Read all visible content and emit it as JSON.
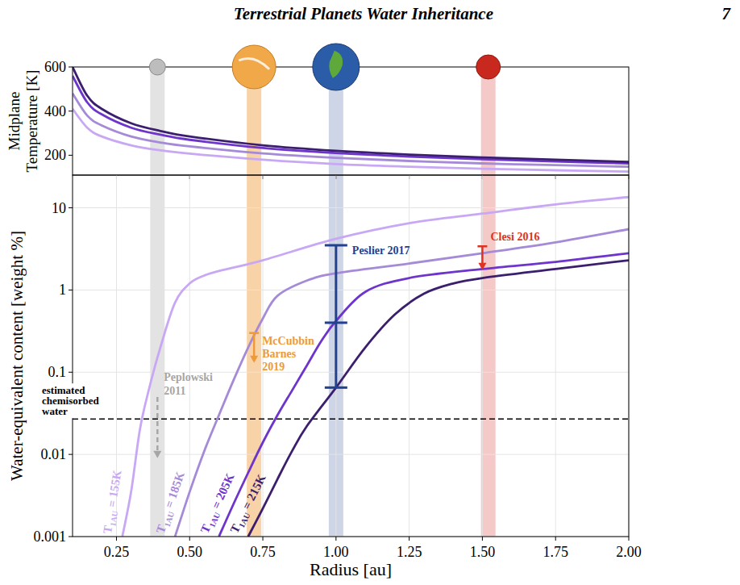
{
  "header": {
    "title": "Terrestrial Planets Water Inheritance",
    "page": "7"
  },
  "chart_data": [
    {
      "type": "line",
      "y_label": "Midplane Temperature [K]",
      "xlim": [
        0.1,
        2.0
      ],
      "ylim": [
        110,
        600
      ],
      "xticks": [
        0.25,
        0.5,
        0.75,
        1,
        1.25,
        1.5,
        1.75,
        2
      ],
      "yticks": [
        200,
        400,
        600
      ],
      "tick_labels": "y",
      "grid": false,
      "series": [
        {
          "color": "#c8a8f4",
          "x": [
            0.1,
            0.15,
            0.2,
            0.3,
            0.4,
            0.5,
            0.75,
            1.0,
            1.25,
            1.5,
            1.75,
            2.0
          ],
          "values": [
            410,
            325,
            285,
            245,
            222,
            207,
            180,
            160,
            148,
            139,
            132,
            126
          ]
        },
        {
          "color": "#a58ad8",
          "x": [
            0.1,
            0.15,
            0.2,
            0.3,
            0.4,
            0.5,
            0.75,
            1.0,
            1.25,
            1.5,
            1.75,
            2.0
          ],
          "values": [
            480,
            380,
            335,
            285,
            258,
            240,
            208,
            188,
            174,
            163,
            155,
            148
          ]
        },
        {
          "color": "#6d35cc",
          "x": [
            0.1,
            0.15,
            0.2,
            0.3,
            0.4,
            0.5,
            0.75,
            1.0,
            1.25,
            1.5,
            1.75,
            2.0
          ],
          "values": [
            560,
            440,
            385,
            325,
            293,
            270,
            233,
            210,
            194,
            182,
            172,
            163
          ]
        },
        {
          "color": "#3b1f6e",
          "x": [
            0.1,
            0.15,
            0.2,
            0.3,
            0.4,
            0.5,
            0.75,
            1.0,
            1.25,
            1.5,
            1.75,
            2.0
          ],
          "values": [
            600,
            470,
            410,
            345,
            310,
            285,
            245,
            220,
            203,
            190,
            180,
            170
          ]
        }
      ]
    },
    {
      "type": "line",
      "log": "y",
      "x_label": "Radius [au]",
      "y_label": "Water-equivalent content [weight %]",
      "xlim": [
        0.1,
        2.0
      ],
      "ylim": [
        0.001,
        25
      ],
      "xticks": [
        0.25,
        {
          "value": 0.5,
          "label": "0.50"
        },
        0.75,
        {
          "value": 1,
          "label": "1.00"
        },
        1.25,
        {
          "value": 1.5,
          "label": "1.50"
        },
        1.75,
        {
          "value": 2,
          "label": "2.00"
        }
      ],
      "yticks": [
        0.001,
        0.01,
        0.1,
        1,
        10
      ],
      "grid": true,
      "series": [
        {
          "name": "T1AU = 155K",
          "color": "#c8a8f4",
          "x": [
            0.27,
            0.3,
            0.33,
            0.36,
            0.4,
            0.45,
            0.5,
            0.55,
            0.6,
            0.75,
            1.0,
            1.25,
            1.5,
            1.75,
            2.0
          ],
          "values": [
            0.001,
            0.0035,
            0.02,
            0.06,
            0.2,
            0.7,
            1.2,
            1.5,
            1.7,
            2.3,
            4.2,
            6.5,
            8.5,
            11,
            13.5
          ]
        },
        {
          "name": "T1AU = 185K",
          "color": "#a58ad8",
          "x": [
            0.45,
            0.5,
            0.55,
            0.6,
            0.65,
            0.7,
            0.75,
            0.8,
            0.9,
            1.0,
            1.25,
            1.5,
            1.75,
            2.0
          ],
          "values": [
            0.001,
            0.0035,
            0.011,
            0.03,
            0.08,
            0.2,
            0.45,
            0.85,
            1.3,
            1.6,
            2.1,
            2.8,
            3.8,
            5.5
          ]
        },
        {
          "name": "T1AU = 205K",
          "color": "#6d35cc",
          "x": [
            0.6,
            0.65,
            0.7,
            0.75,
            0.8,
            0.85,
            0.9,
            0.95,
            1.0,
            1.1,
            1.25,
            1.5,
            1.75,
            2.0
          ],
          "values": [
            0.001,
            0.0025,
            0.006,
            0.014,
            0.03,
            0.06,
            0.12,
            0.24,
            0.42,
            0.95,
            1.4,
            1.8,
            2.2,
            2.8
          ]
        },
        {
          "name": "T1AU = 215K",
          "color": "#3b1f6e",
          "x": [
            0.7,
            0.75,
            0.8,
            0.85,
            0.9,
            1.0,
            1.1,
            1.2,
            1.3,
            1.4,
            1.5,
            1.75,
            2.0
          ],
          "values": [
            0.001,
            0.0022,
            0.005,
            0.011,
            0.022,
            0.065,
            0.2,
            0.5,
            0.9,
            1.2,
            1.4,
            1.8,
            2.3
          ]
        }
      ],
      "bands": [
        {
          "x": 0.39,
          "color": "#e3e3e3"
        },
        {
          "x": 0.72,
          "color": "#f8d3a8"
        },
        {
          "x": 1.0,
          "color": "#cdd5e6"
        },
        {
          "x": 1.52,
          "color": "#f6c9c9"
        }
      ],
      "hline": {
        "label": "estimated chemisorbed water",
        "value": 0.027,
        "line_style": "dashed",
        "color": "#000000"
      },
      "error_bar": {
        "label": "Peslier 2017",
        "x": 1.0,
        "values": [
          0.065,
          0.4,
          3.5
        ],
        "color": "#22418f"
      },
      "limits": [
        {
          "label": "Peplowski 2011",
          "x": 0.39,
          "from": 0.05,
          "to": 0.009,
          "color": "#a6a6a6",
          "line_style": "dashed"
        },
        {
          "label": "McCubbin Barnes 2019",
          "x": 0.72,
          "from": 0.3,
          "to": 0.13,
          "color": "#ee9a3a",
          "line_style": "solid"
        },
        {
          "label": "Clesi 2016",
          "x": 1.5,
          "from": 3.4,
          "to": 1.75,
          "color": "#dd3322",
          "line_style": "solid"
        }
      ]
    }
  ]
}
